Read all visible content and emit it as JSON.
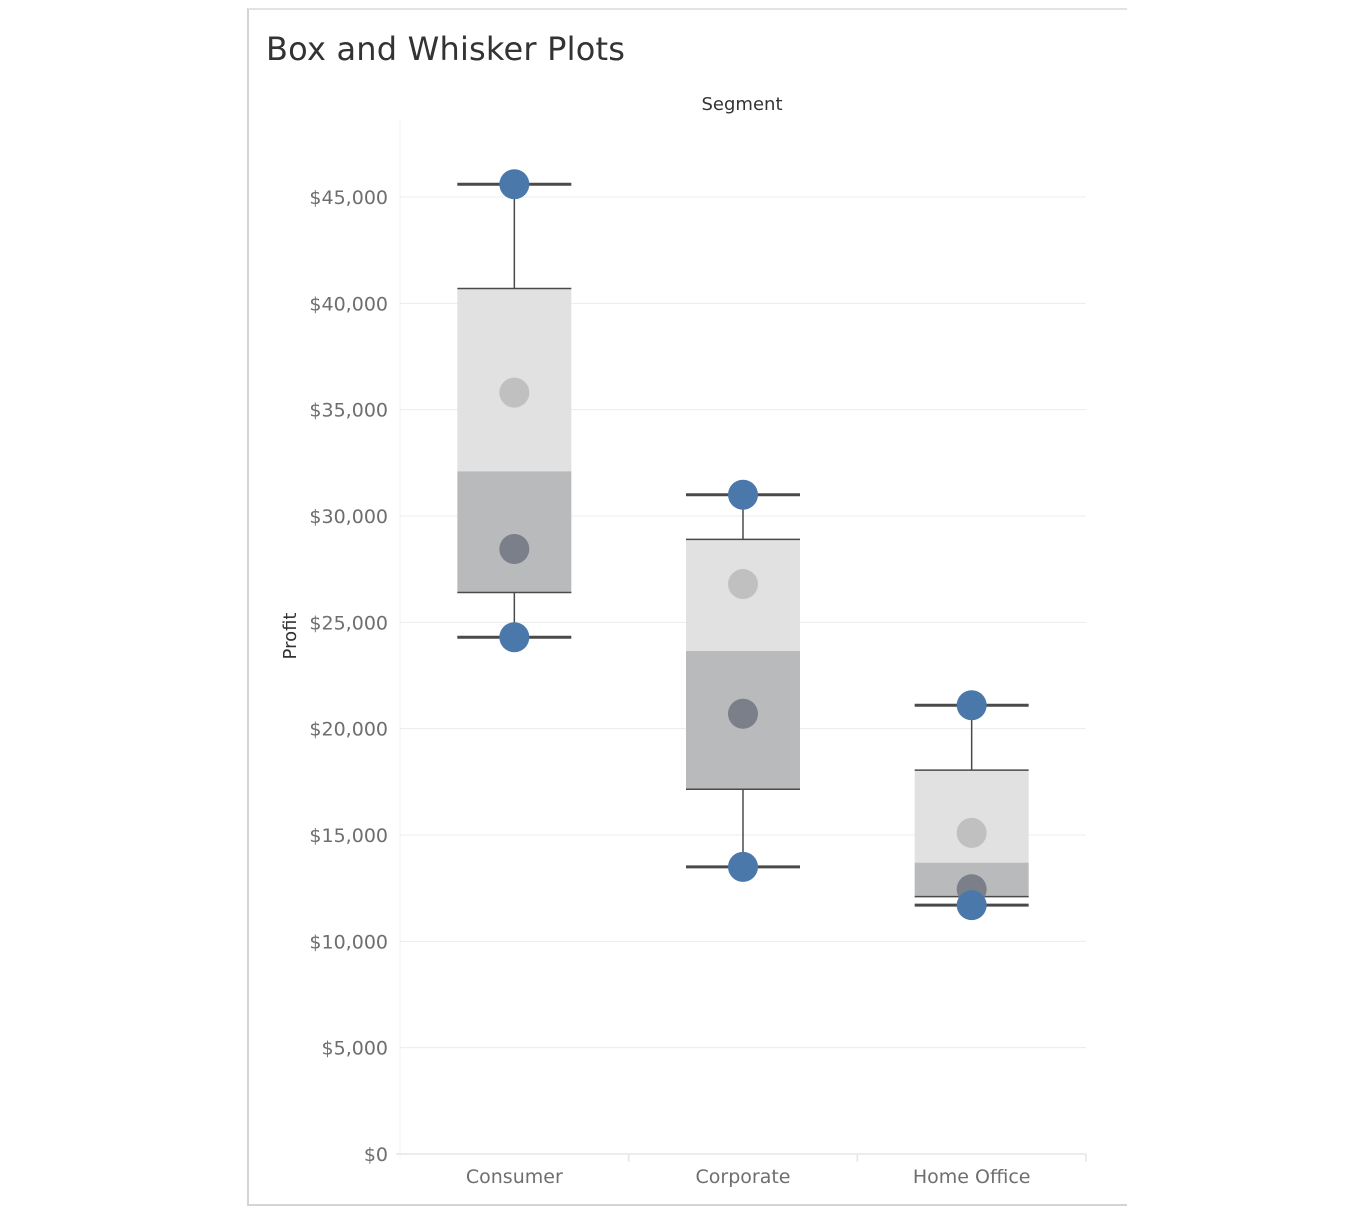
{
  "page_title": "Box and Whisker Plots",
  "colors": {
    "point_whisker": "#4a78aa",
    "point_upper": "#c0c0c0",
    "point_lower": "#7a7f89",
    "box_upper": "#e1e1e1",
    "box_lower": "#b9babb",
    "whisker_line": "#4a4a4a",
    "gridline": "#ececec"
  },
  "chart_data": {
    "type": "box",
    "title": "Box and Whisker Plots",
    "column_header": "Segment",
    "ylabel": "Profit",
    "ylim": [
      0,
      48500
    ],
    "yticks": [
      0,
      5000,
      10000,
      15000,
      20000,
      25000,
      30000,
      35000,
      40000,
      45000
    ],
    "ytick_labels": [
      "$0",
      "$5,000",
      "$10,000",
      "$15,000",
      "$20,000",
      "$25,000",
      "$30,000",
      "$35,000",
      "$40,000",
      "$45,000"
    ],
    "categories": [
      "Consumer",
      "Corporate",
      "Home Office"
    ],
    "grid": true,
    "boxes": [
      {
        "category": "Consumer",
        "whisker_low": 24300,
        "q1": 26400,
        "median": 32100,
        "q3": 40700,
        "whisker_high": 45600,
        "points": [
          45600,
          35800,
          28450,
          24300
        ]
      },
      {
        "category": "Corporate",
        "whisker_low": 13500,
        "q1": 17150,
        "median": 23650,
        "q3": 28900,
        "whisker_high": 31000,
        "points": [
          31000,
          26800,
          20700,
          13500
        ]
      },
      {
        "category": "Home Office",
        "whisker_low": 11700,
        "q1": 12100,
        "median": 13700,
        "q3": 18050,
        "whisker_high": 21100,
        "points": [
          21100,
          15100,
          12450,
          11700
        ]
      }
    ]
  }
}
